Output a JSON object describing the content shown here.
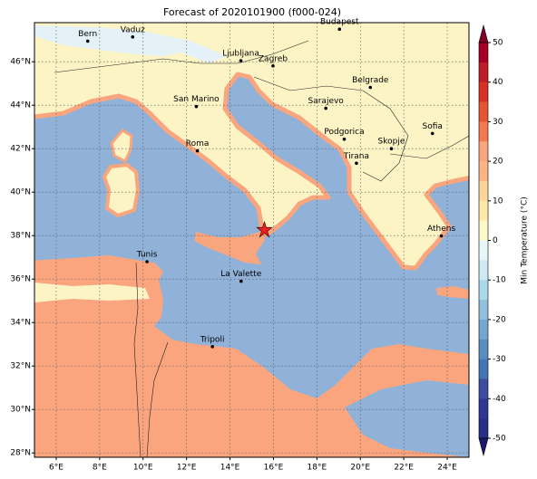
{
  "title": "Forecast of 2020101900 (f000-024)",
  "map": {
    "xlim": [
      5,
      25
    ],
    "ylim": [
      27.8,
      47.8
    ],
    "grid": true,
    "xticks": [
      {
        "value": 6,
        "label": "6°E"
      },
      {
        "value": 8,
        "label": "8°E"
      },
      {
        "value": 10,
        "label": "10°E"
      },
      {
        "value": 12,
        "label": "12°E"
      },
      {
        "value": 14,
        "label": "14°E"
      },
      {
        "value": 16,
        "label": "16°E"
      },
      {
        "value": 18,
        "label": "18°E"
      },
      {
        "value": 20,
        "label": "20°E"
      },
      {
        "value": 22,
        "label": "22°E"
      },
      {
        "value": 24,
        "label": "24°E"
      }
    ],
    "yticks": [
      {
        "value": 28,
        "label": "28°N"
      },
      {
        "value": 30,
        "label": "30°N"
      },
      {
        "value": 32,
        "label": "32°N"
      },
      {
        "value": 34,
        "label": "34°N"
      },
      {
        "value": 36,
        "label": "36°N"
      },
      {
        "value": 38,
        "label": "38°N"
      },
      {
        "value": 40,
        "label": "40°N"
      },
      {
        "value": 42,
        "label": "42°N"
      },
      {
        "value": 44,
        "label": "44°N"
      },
      {
        "value": 46,
        "label": "46°N"
      }
    ],
    "cities": [
      "Bern",
      "Vaduz",
      "Budapest",
      "Ljubljana",
      "Zagreb",
      "Belgrade",
      "Sarajevo",
      "San Marino",
      "Podgorica",
      "Sofia",
      "Skopje",
      "Roma",
      "Tirana",
      "Athens",
      "Tunis",
      "La Valette",
      "Tripoli"
    ]
  },
  "colorbar": {
    "label": "Min Temperature (°C)",
    "lim": [
      -50,
      50
    ],
    "ticks": [
      -50,
      -40,
      -30,
      -20,
      -10,
      0,
      10,
      20,
      30,
      40,
      50
    ]
  }
}
